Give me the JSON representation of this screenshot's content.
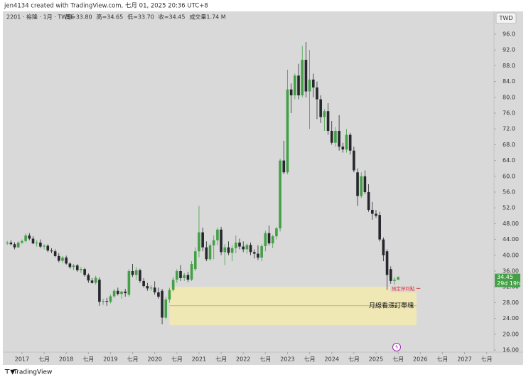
{
  "chart_data": {
    "type": "candlestick",
    "header": "jen4134 created with TradingView.com, 七月 01, 2025 20:36 UTC+8",
    "symbol": "2201 · 裕隆 · 1月 · TWSE",
    "legend_items": [
      "開=33.80",
      "高=34.65",
      "低=33.70",
      "收=34.45",
      "成交量1.74 M"
    ],
    "currency": "TWD",
    "footer": "TradingView",
    "up_color": "#43a047",
    "down_color": "#25272c",
    "x": [
      "2016-09",
      "2016-10",
      "2016-11",
      "2016-12",
      "2017-01",
      "2017-02",
      "2017-03",
      "2017-04",
      "2017-05",
      "2017-06",
      "2017-07",
      "2017-08",
      "2017-09",
      "2017-10",
      "2017-11",
      "2017-12",
      "2018-01",
      "2018-02",
      "2018-03",
      "2018-04",
      "2018-05",
      "2018-06",
      "2018-07",
      "2018-08",
      "2018-09",
      "2018-10",
      "2018-11",
      "2018-12",
      "2019-01",
      "2019-02",
      "2019-03",
      "2019-04",
      "2019-05",
      "2019-06",
      "2019-07",
      "2019-08",
      "2019-09",
      "2019-10",
      "2019-11",
      "2019-12",
      "2020-01",
      "2020-02",
      "2020-03",
      "2020-04",
      "2020-05",
      "2020-06",
      "2020-07",
      "2020-08",
      "2020-09",
      "2020-10",
      "2020-11",
      "2020-12",
      "2021-01",
      "2021-02",
      "2021-03",
      "2021-04",
      "2021-05",
      "2021-06",
      "2021-07",
      "2021-08",
      "2021-09",
      "2021-10",
      "2021-11",
      "2021-12",
      "2022-01",
      "2022-02",
      "2022-03",
      "2022-04",
      "2022-05",
      "2022-06",
      "2022-07",
      "2022-08",
      "2022-09",
      "2022-10",
      "2022-11",
      "2022-12",
      "2023-01",
      "2023-02",
      "2023-03",
      "2023-04",
      "2023-05",
      "2023-06",
      "2023-07",
      "2023-08",
      "2023-09",
      "2023-10",
      "2023-11",
      "2023-12",
      "2024-01",
      "2024-02",
      "2024-03",
      "2024-04",
      "2024-05",
      "2024-06",
      "2024-07",
      "2024-08",
      "2024-09",
      "2024-10",
      "2024-11",
      "2024-12",
      "2025-01",
      "2025-02",
      "2025-03",
      "2025-04",
      "2025-05",
      "2025-06",
      "2025-07"
    ],
    "open": [
      43.0,
      43.2,
      42.8,
      42.0,
      43.2,
      43.6,
      45.0,
      44.2,
      43.0,
      43.2,
      42.2,
      42.4,
      41.2,
      41.0,
      39.8,
      38.6,
      39.4,
      37.9,
      37.0,
      37.4,
      36.2,
      36.5,
      35.0,
      33.6,
      33.0,
      33.8,
      28.2,
      28.4,
      28.2,
      29.6,
      31.0,
      30.2,
      30.8,
      30.0,
      36.0,
      35.0,
      36.2,
      33.5,
      32.2,
      31.6,
      31.8,
      30.6,
      31.0,
      24.2,
      28.8,
      31.2,
      33.8,
      36.0,
      34.2,
      35.0,
      33.8,
      36.5,
      41.0,
      45.8,
      42.0,
      39.0,
      42.5,
      43.8,
      46.5,
      40.8,
      42.0,
      40.6,
      41.8,
      43.2,
      42.2,
      41.5,
      42.6,
      40.8,
      40.4,
      39.4,
      42.3,
      45.6,
      43.0,
      44.8,
      46.8,
      64.0,
      61.0,
      82.0,
      80.5,
      85.5,
      80.5,
      89.5,
      81.5,
      84.5,
      82.5,
      79.5,
      75.0,
      76.5,
      71.5,
      68.5,
      71.5,
      67.5,
      66.8,
      70.5,
      66.5,
      61.0,
      55.0,
      60.0,
      56.0,
      51.5,
      50.5,
      50.2,
      44.0,
      41.0,
      36.5,
      33.5,
      33.8
    ],
    "high": [
      43.6,
      43.8,
      43.3,
      43.5,
      44.0,
      45.5,
      45.6,
      44.8,
      43.8,
      44.0,
      42.8,
      42.8,
      41.8,
      41.5,
      40.5,
      39.8,
      39.9,
      38.2,
      37.8,
      37.8,
      37.0,
      36.8,
      35.4,
      34.2,
      34.8,
      34.4,
      29.0,
      29.2,
      30.0,
      31.5,
      31.8,
      31.0,
      31.5,
      36.5,
      37.8,
      37.0,
      36.6,
      34.2,
      33.0,
      32.4,
      33.4,
      31.8,
      31.5,
      29.5,
      31.8,
      34.5,
      36.5,
      37.5,
      35.5,
      35.8,
      38.5,
      42.0,
      52.5,
      47.0,
      43.5,
      43.0,
      45.0,
      47.0,
      47.2,
      42.8,
      43.5,
      42.5,
      45.0,
      44.2,
      43.5,
      43.0,
      43.2,
      41.5,
      42.5,
      42.8,
      46.2,
      47.5,
      45.2,
      47.2,
      64.5,
      69.0,
      87.0,
      83.5,
      86.0,
      88.5,
      93.0,
      94.0,
      92.0,
      86.0,
      84.0,
      80.5,
      77.0,
      78.5,
      74.0,
      72.5,
      75.5,
      68.5,
      72.0,
      71.0,
      67.5,
      62.0,
      61.0,
      61.5,
      58.0,
      53.5,
      51.5,
      51.0,
      44.5,
      41.5,
      37.2,
      34.5,
      34.65
    ],
    "low": [
      42.6,
      42.5,
      41.5,
      41.8,
      42.8,
      43.2,
      43.8,
      42.8,
      42.2,
      41.8,
      41.5,
      40.8,
      40.5,
      39.5,
      38.2,
      38.0,
      37.6,
      36.6,
      36.2,
      35.8,
      35.5,
      34.6,
      33.0,
      32.8,
      32.6,
      27.2,
      27.4,
      27.2,
      27.8,
      29.2,
      29.8,
      29.0,
      29.5,
      29.5,
      34.5,
      33.8,
      33.0,
      31.8,
      31.0,
      31.0,
      30.0,
      29.0,
      22.5,
      23.8,
      28.0,
      30.8,
      33.0,
      33.5,
      33.5,
      33.2,
      33.5,
      36.0,
      39.5,
      41.0,
      38.5,
      38.6,
      39.0,
      42.5,
      40.0,
      37.5,
      40.0,
      38.5,
      40.5,
      41.5,
      40.8,
      40.4,
      40.0,
      39.2,
      38.8,
      38.5,
      41.0,
      42.5,
      41.8,
      44.0,
      46.0,
      60.5,
      60.5,
      76.0,
      79.5,
      79.5,
      80.0,
      80.0,
      72.0,
      80.0,
      74.5,
      73.5,
      71.5,
      70.5,
      68.0,
      67.5,
      66.5,
      66.0,
      66.0,
      65.5,
      61.0,
      52.5,
      54.5,
      55.5,
      51.0,
      49.0,
      49.5,
      43.5,
      38.5,
      31.2,
      32.8,
      32.5,
      33.7
    ],
    "close": [
      43.2,
      42.8,
      42.0,
      43.2,
      43.6,
      45.0,
      44.2,
      43.0,
      43.2,
      42.2,
      42.4,
      41.2,
      41.0,
      39.8,
      38.6,
      39.4,
      37.9,
      37.0,
      37.4,
      36.2,
      36.5,
      35.0,
      33.6,
      33.0,
      34.3,
      28.2,
      28.4,
      28.2,
      29.6,
      31.0,
      30.2,
      30.8,
      30.4,
      36.0,
      35.0,
      36.2,
      33.5,
      32.2,
      31.6,
      31.8,
      30.6,
      29.5,
      24.2,
      28.8,
      31.2,
      33.8,
      36.0,
      34.2,
      35.0,
      33.8,
      37.8,
      41.0,
      45.8,
      42.0,
      39.0,
      42.5,
      43.8,
      46.5,
      40.8,
      42.0,
      40.6,
      41.8,
      43.2,
      42.2,
      41.5,
      42.6,
      40.8,
      40.4,
      39.4,
      42.3,
      45.6,
      43.0,
      44.8,
      46.8,
      64.0,
      61.0,
      82.0,
      80.5,
      85.5,
      80.5,
      89.5,
      81.5,
      84.5,
      82.5,
      79.5,
      75.0,
      76.5,
      71.5,
      68.5,
      71.5,
      67.5,
      66.8,
      70.5,
      66.5,
      61.5,
      55.0,
      60.0,
      56.0,
      51.5,
      50.5,
      50.0,
      44.0,
      40.0,
      35.0,
      33.5,
      33.8,
      34.45
    ],
    "xlim": [
      "2016-08",
      "2027-09"
    ],
    "xticks": [
      {
        "value": "2017-01",
        "label": "2017"
      },
      {
        "value": "2017-07",
        "label": "七月"
      },
      {
        "value": "2018-01",
        "label": "2018"
      },
      {
        "value": "2018-07",
        "label": "七月"
      },
      {
        "value": "2019-01",
        "label": "2019"
      },
      {
        "value": "2019-07",
        "label": "七月"
      },
      {
        "value": "2020-01",
        "label": "2020"
      },
      {
        "value": "2020-07",
        "label": "七月"
      },
      {
        "value": "2021-01",
        "label": "2021"
      },
      {
        "value": "2021-07",
        "label": "七月"
      },
      {
        "value": "2022-01",
        "label": "2022"
      },
      {
        "value": "2022-07",
        "label": "七月"
      },
      {
        "value": "2023-01",
        "label": "2023"
      },
      {
        "value": "2023-07",
        "label": "七月"
      },
      {
        "value": "2024-01",
        "label": "2024"
      },
      {
        "value": "2024-07",
        "label": "七月"
      },
      {
        "value": "2025-01",
        "label": "2025"
      },
      {
        "value": "2025-07",
        "label": "七月"
      },
      {
        "value": "2026-01",
        "label": "2026"
      },
      {
        "value": "2026-07",
        "label": "七月"
      },
      {
        "value": "2027-01",
        "label": "2027"
      },
      {
        "value": "2027-07",
        "label": "七月"
      }
    ],
    "ylim": [
      15.46,
      101.77
    ],
    "yticks": [
      {
        "value": 96,
        "label": "96.0"
      },
      {
        "value": 92,
        "label": "92.0"
      },
      {
        "value": 88,
        "label": "88.0"
      },
      {
        "value": 84,
        "label": "84.0"
      },
      {
        "value": 80,
        "label": "80.0"
      },
      {
        "value": 76,
        "label": "76.0"
      },
      {
        "value": 72,
        "label": "72.0"
      },
      {
        "value": 68,
        "label": "68.0"
      },
      {
        "value": 64,
        "label": "64.0"
      },
      {
        "value": 60,
        "label": "60.0"
      },
      {
        "value": 56,
        "label": "56.0"
      },
      {
        "value": 52,
        "label": "52.0"
      },
      {
        "value": 48,
        "label": "48.00"
      },
      {
        "value": 44,
        "label": "44.00"
      },
      {
        "value": 40,
        "label": "40.00"
      },
      {
        "value": 36,
        "label": "36.00"
      },
      {
        "value": 32,
        "label": "32.00"
      },
      {
        "value": 28,
        "label": "28.00"
      },
      {
        "value": 24,
        "label": "24.00"
      },
      {
        "value": 20,
        "label": "20.00"
      },
      {
        "value": 16,
        "label": "16.00"
      }
    ],
    "grid": false,
    "zone": {
      "label": "月線看漲訂單塊",
      "top": 32.0,
      "bottom": 22.3,
      "mid": 27.2,
      "start": "2020-05",
      "end": "2025-12",
      "color": "#efe7b4"
    },
    "target": {
      "label": "預定停利點",
      "value": 31.6,
      "start": "2025-06",
      "end": "2026-01",
      "color": "#e53935"
    },
    "price_tag": {
      "label": "34.45",
      "countdown": "29d 19h",
      "value": 34.45
    }
  }
}
